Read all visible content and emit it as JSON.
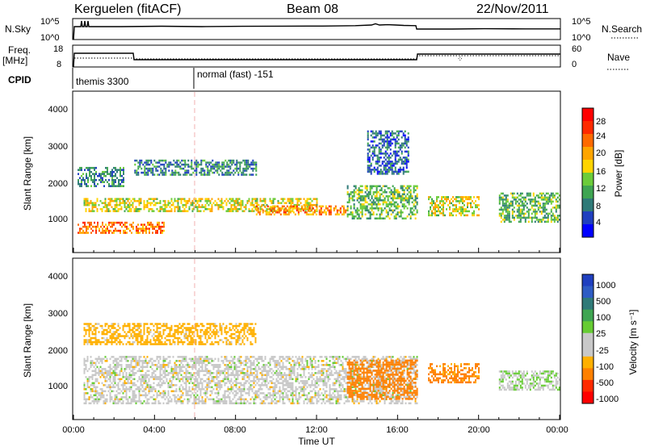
{
  "header": {
    "station": "Kerguelen (fitACF)",
    "beam": "Beam 08",
    "date": "22/Nov/2011"
  },
  "nsky_panel": {
    "left_label": "N.Sky",
    "left_ticks": [
      "10^5",
      "10^0"
    ],
    "right_label": "N.Search",
    "right_ticks": [
      "10^5",
      "10^0"
    ]
  },
  "freq_panel": {
    "left_label_1": "Freq.",
    "left_label_2": "[MHz]",
    "left_ticks": [
      "18",
      "8"
    ],
    "right_label": "Nave",
    "right_ticks": [
      "60",
      "0"
    ]
  },
  "cpid_panel": {
    "label": "CPID",
    "segments": [
      "themis 3300",
      "normal (fast) -151"
    ]
  },
  "power_panel": {
    "ylabel": "Slant Range [km]",
    "yticks": [
      "4000",
      "3000",
      "2000",
      "1000"
    ],
    "colorbar_label": "Power [dB]",
    "colorbar_ticks": [
      "28",
      "24",
      "20",
      "16",
      "12",
      "8",
      "4"
    ]
  },
  "velocity_panel": {
    "ylabel": "Slant Range [km]",
    "yticks": [
      "4000",
      "3000",
      "2000",
      "1000"
    ],
    "colorbar_label": "Velocity [m s⁻¹]",
    "colorbar_ticks": [
      "1000",
      "500",
      "100",
      "25",
      "-25",
      "-100",
      "-500",
      "-1000"
    ]
  },
  "xaxis": {
    "label": "Time UT",
    "ticks": [
      "00:00",
      "04:00",
      "08:00",
      "12:00",
      "16:00",
      "20:00",
      "00:00"
    ]
  },
  "chart_data": [
    {
      "type": "line",
      "title": "N.Sky / N.Search",
      "x_unit": "hours UT",
      "xlim": [
        0,
        24
      ],
      "series": [
        {
          "name": "N.Sky",
          "x": [
            0,
            0.05,
            0.5,
            1,
            2,
            3,
            4,
            6,
            8,
            10,
            12,
            14,
            15,
            16,
            17,
            17.05,
            19,
            21,
            24
          ],
          "y_log10": [
            0,
            2,
            2.1,
            2.2,
            2.2,
            2.3,
            2.3,
            2.2,
            2.2,
            2.2,
            2.3,
            2.4,
            2.6,
            2.5,
            2.4,
            1.9,
            1.9,
            1.9,
            1.9
          ]
        }
      ],
      "ylim_log10": [
        0,
        5
      ]
    },
    {
      "type": "line",
      "title": "Freq. / Nave",
      "x_unit": "hours UT",
      "xlim": [
        0,
        24
      ],
      "ylim": [
        8,
        18
      ],
      "series": [
        {
          "name": "Freq. [MHz]",
          "x": [
            0,
            0.05,
            3,
            3.05,
            17,
            17.05,
            24
          ],
          "y": [
            11.9,
            11.9,
            11.9,
            9.2,
            9.2,
            12.1,
            12.1
          ]
        },
        {
          "name": "Nave",
          "x": [
            0,
            3,
            3.05,
            17,
            17.05,
            24
          ],
          "y": [
            13,
            13,
            11,
            11,
            12.4,
            12.4
          ]
        }
      ]
    },
    {
      "type": "heatmap",
      "title": "Power [dB]",
      "xlim": [
        0,
        24
      ],
      "ylim": [
        180,
        4550
      ],
      "clim": [
        0,
        30
      ],
      "colorbar": [
        "#0000ff",
        "#1f3fbf",
        "#2f7a78",
        "#3fa552",
        "#6ccc3a",
        "#ffd400",
        "#ffa500",
        "#ff6a00",
        "#ff2a00",
        "#ff0000"
      ],
      "echo_regions": [
        {
          "t": [
            0.2,
            4.5
          ],
          "r": [
            700,
            1000
          ],
          "power": 22
        },
        {
          "t": [
            0.5,
            12
          ],
          "r": [
            1300,
            1650
          ],
          "power": 16
        },
        {
          "t": [
            9,
            13.5
          ],
          "r": [
            1200,
            1450
          ],
          "power": 20
        },
        {
          "t": [
            0.2,
            2.5
          ],
          "r": [
            2000,
            2500
          ],
          "power": 8
        },
        {
          "t": [
            3,
            9
          ],
          "r": [
            2300,
            2700
          ],
          "power": 8
        },
        {
          "t": [
            13.5,
            17
          ],
          "r": [
            1100,
            2000
          ],
          "power": 12
        },
        {
          "t": [
            14.5,
            16.5
          ],
          "r": [
            2300,
            3500
          ],
          "power": 6
        },
        {
          "t": [
            17.5,
            20
          ],
          "r": [
            1200,
            1700
          ],
          "power": 16
        },
        {
          "t": [
            21,
            24
          ],
          "r": [
            1000,
            1800
          ],
          "power": 12
        }
      ]
    },
    {
      "type": "heatmap",
      "title": "Velocity [m s-1]",
      "xlim": [
        0,
        24
      ],
      "ylim": [
        180,
        4550
      ],
      "clim": [
        -1000,
        1000
      ],
      "colorbar": [
        "#0000ff",
        "#2e5cc4",
        "#3fa552",
        "#66cc33",
        "#c8c8c8",
        "#c8c8c8",
        "#ffb000",
        "#ff8000",
        "#ff3000",
        "#ff0000"
      ],
      "echo_regions": [
        {
          "t": [
            0.5,
            17
          ],
          "r": [
            600,
            1900
          ],
          "velocity": 0
        },
        {
          "t": [
            13.5,
            17
          ],
          "r": [
            700,
            1800
          ],
          "velocity": -300
        },
        {
          "t": [
            0.5,
            9
          ],
          "r": [
            2200,
            2800
          ],
          "velocity": -50
        },
        {
          "t": [
            17.5,
            20
          ],
          "r": [
            1200,
            1700
          ],
          "velocity": -120
        },
        {
          "t": [
            21,
            24
          ],
          "r": [
            1000,
            1500
          ],
          "velocity": 20
        }
      ]
    }
  ]
}
